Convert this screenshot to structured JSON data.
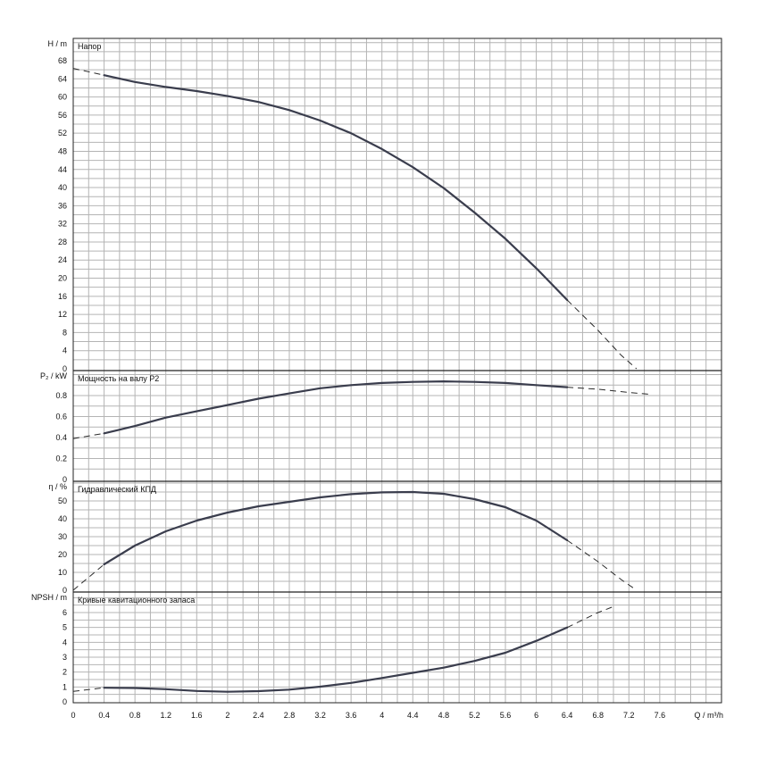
{
  "chart_data": {
    "type": "line",
    "x_axis": {
      "label": "Q / m³/h",
      "range": [
        0,
        8.4
      ],
      "ticks": [
        "0",
        "0.4",
        "0.8",
        "1.2",
        "1.6",
        "2",
        "2.4",
        "2.8",
        "3.2",
        "3.6",
        "4",
        "4.4",
        "4.8",
        "5.2",
        "5.6",
        "6",
        "6.4",
        "6.8",
        "7.2",
        "7.6"
      ]
    },
    "grid": true,
    "panels": [
      {
        "id": "head",
        "title": "Напор",
        "ylabel": "H / m",
        "ylim": [
          0,
          72
        ],
        "yticks": [
          0,
          4,
          8,
          12,
          16,
          20,
          24,
          28,
          32,
          36,
          40,
          44,
          48,
          52,
          56,
          60,
          64,
          68
        ],
        "ytick_labels": [
          "0",
          "4",
          "8",
          "12",
          "16",
          "20",
          "24",
          "28",
          "32",
          "36",
          "40",
          "44",
          "48",
          "52",
          "56",
          "60",
          "64",
          "68"
        ],
        "solid": [
          [
            0.4,
            64.8
          ],
          [
            0.8,
            63.3
          ],
          [
            1.2,
            62.2
          ],
          [
            1.6,
            61.3
          ],
          [
            2.0,
            60.2
          ],
          [
            2.4,
            58.9
          ],
          [
            2.8,
            57.1
          ],
          [
            3.2,
            54.8
          ],
          [
            3.6,
            52.0
          ],
          [
            4.0,
            48.5
          ],
          [
            4.4,
            44.5
          ],
          [
            4.8,
            39.9
          ],
          [
            5.2,
            34.5
          ],
          [
            5.6,
            28.7
          ],
          [
            6.0,
            22.2
          ],
          [
            6.4,
            15.2
          ]
        ],
        "dashed_start": [
          [
            0.0,
            66.3
          ],
          [
            0.4,
            64.8
          ]
        ],
        "dashed_end": [
          [
            6.4,
            15.2
          ],
          [
            6.8,
            8.5
          ],
          [
            7.1,
            3.0
          ],
          [
            7.3,
            0.0
          ]
        ]
      },
      {
        "id": "power",
        "title": "Мощность на валу P2",
        "ylabel": "P₂ / kW",
        "ylim": [
          0,
          1.0
        ],
        "yticks": [
          0,
          0.2,
          0.4,
          0.6,
          0.8
        ],
        "ytick_labels": [
          "0",
          "0.2",
          "0.4",
          "0.6",
          "0.8"
        ],
        "solid": [
          [
            0.4,
            0.44
          ],
          [
            0.8,
            0.51
          ],
          [
            1.2,
            0.59
          ],
          [
            1.6,
            0.65
          ],
          [
            2.0,
            0.71
          ],
          [
            2.4,
            0.77
          ],
          [
            2.8,
            0.82
          ],
          [
            3.2,
            0.87
          ],
          [
            3.6,
            0.9
          ],
          [
            4.0,
            0.92
          ],
          [
            4.4,
            0.93
          ],
          [
            4.8,
            0.935
          ],
          [
            5.2,
            0.93
          ],
          [
            5.6,
            0.92
          ],
          [
            6.0,
            0.9
          ],
          [
            6.4,
            0.88
          ]
        ],
        "dashed_start": [
          [
            0.0,
            0.39
          ],
          [
            0.4,
            0.44
          ]
        ],
        "dashed_end": [
          [
            6.4,
            0.88
          ],
          [
            6.8,
            0.86
          ],
          [
            7.2,
            0.83
          ],
          [
            7.5,
            0.81
          ]
        ]
      },
      {
        "id": "efficiency",
        "title": "Гидравлический КПД",
        "ylabel": "η / %",
        "ylim": [
          0,
          59
        ],
        "yticks": [
          0,
          10,
          20,
          30,
          40,
          50
        ],
        "ytick_labels": [
          "0",
          "10",
          "20",
          "30",
          "40",
          "50"
        ],
        "solid": [
          [
            0.4,
            14.5
          ],
          [
            0.8,
            25.0
          ],
          [
            1.2,
            33.0
          ],
          [
            1.6,
            39.0
          ],
          [
            2.0,
            43.5
          ],
          [
            2.4,
            47.0
          ],
          [
            2.8,
            49.5
          ],
          [
            3.2,
            52.0
          ],
          [
            3.6,
            53.8
          ],
          [
            4.0,
            54.8
          ],
          [
            4.4,
            55.0
          ],
          [
            4.8,
            54.0
          ],
          [
            5.2,
            51.0
          ],
          [
            5.6,
            46.5
          ],
          [
            6.0,
            39.0
          ],
          [
            6.4,
            28.0
          ]
        ],
        "dashed_start": [
          [
            0.0,
            0.0
          ],
          [
            0.4,
            14.5
          ]
        ],
        "dashed_end": [
          [
            6.4,
            28.0
          ],
          [
            6.8,
            16.0
          ],
          [
            7.1,
            6.0
          ],
          [
            7.3,
            0.0
          ]
        ]
      },
      {
        "id": "npsh",
        "title": "Кривые кавитационного запаса",
        "ylabel": "NPSH / m",
        "ylim": [
          0,
          7
        ],
        "yticks": [
          0,
          1,
          2,
          3,
          4,
          5,
          6
        ],
        "ytick_labels": [
          "0",
          "1",
          "2",
          "3",
          "4",
          "5",
          "6"
        ],
        "solid": [
          [
            0.4,
            0.95
          ],
          [
            0.8,
            0.93
          ],
          [
            1.2,
            0.85
          ],
          [
            1.6,
            0.73
          ],
          [
            2.0,
            0.68
          ],
          [
            2.4,
            0.72
          ],
          [
            2.8,
            0.82
          ],
          [
            3.2,
            1.02
          ],
          [
            3.6,
            1.27
          ],
          [
            4.0,
            1.6
          ],
          [
            4.4,
            1.95
          ],
          [
            4.8,
            2.3
          ],
          [
            5.2,
            2.75
          ],
          [
            5.6,
            3.3
          ],
          [
            6.0,
            4.1
          ],
          [
            6.4,
            5.0
          ]
        ],
        "dashed_start": [
          [
            0.0,
            0.7
          ],
          [
            0.4,
            0.95
          ]
        ],
        "dashed_end": [
          [
            6.4,
            5.0
          ],
          [
            6.8,
            6.0
          ],
          [
            7.0,
            6.4
          ]
        ]
      }
    ]
  }
}
